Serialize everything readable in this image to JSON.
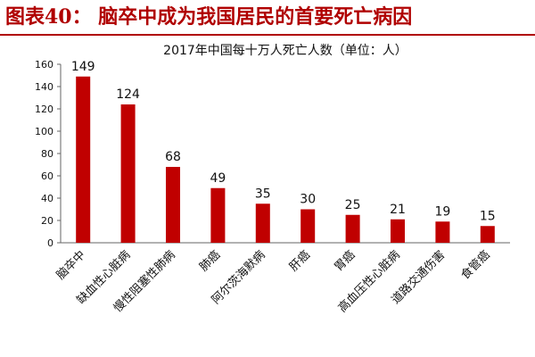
{
  "header": {
    "title": "图表40： 脑卒中成为我国居民的首要死亡病因"
  },
  "colors": {
    "accent": "#b00000",
    "bar": "#c00000"
  },
  "chart_data": {
    "type": "bar",
    "title": "2017年中国每十万人死亡人数（单位：人）",
    "xlabel": "",
    "ylabel": "",
    "categories": [
      "脑卒中",
      "缺血性心脏病",
      "慢性阻塞性肺病",
      "肺癌",
      "阿尔茨海默病",
      "肝癌",
      "胃癌",
      "高血压性心脏病",
      "道路交通伤害",
      "食管癌"
    ],
    "values": [
      149,
      124,
      68,
      49,
      35,
      30,
      25,
      21,
      19,
      15
    ],
    "ylim": [
      0,
      160
    ],
    "yticks": [
      "0",
      "20",
      "40",
      "60",
      "80",
      "100",
      "120",
      "140",
      "160"
    ],
    "data_labels": [
      "149",
      "124",
      "68",
      "49",
      "35",
      "30",
      "25",
      "21",
      "19",
      "15"
    ],
    "grid": false,
    "legend": "none"
  }
}
